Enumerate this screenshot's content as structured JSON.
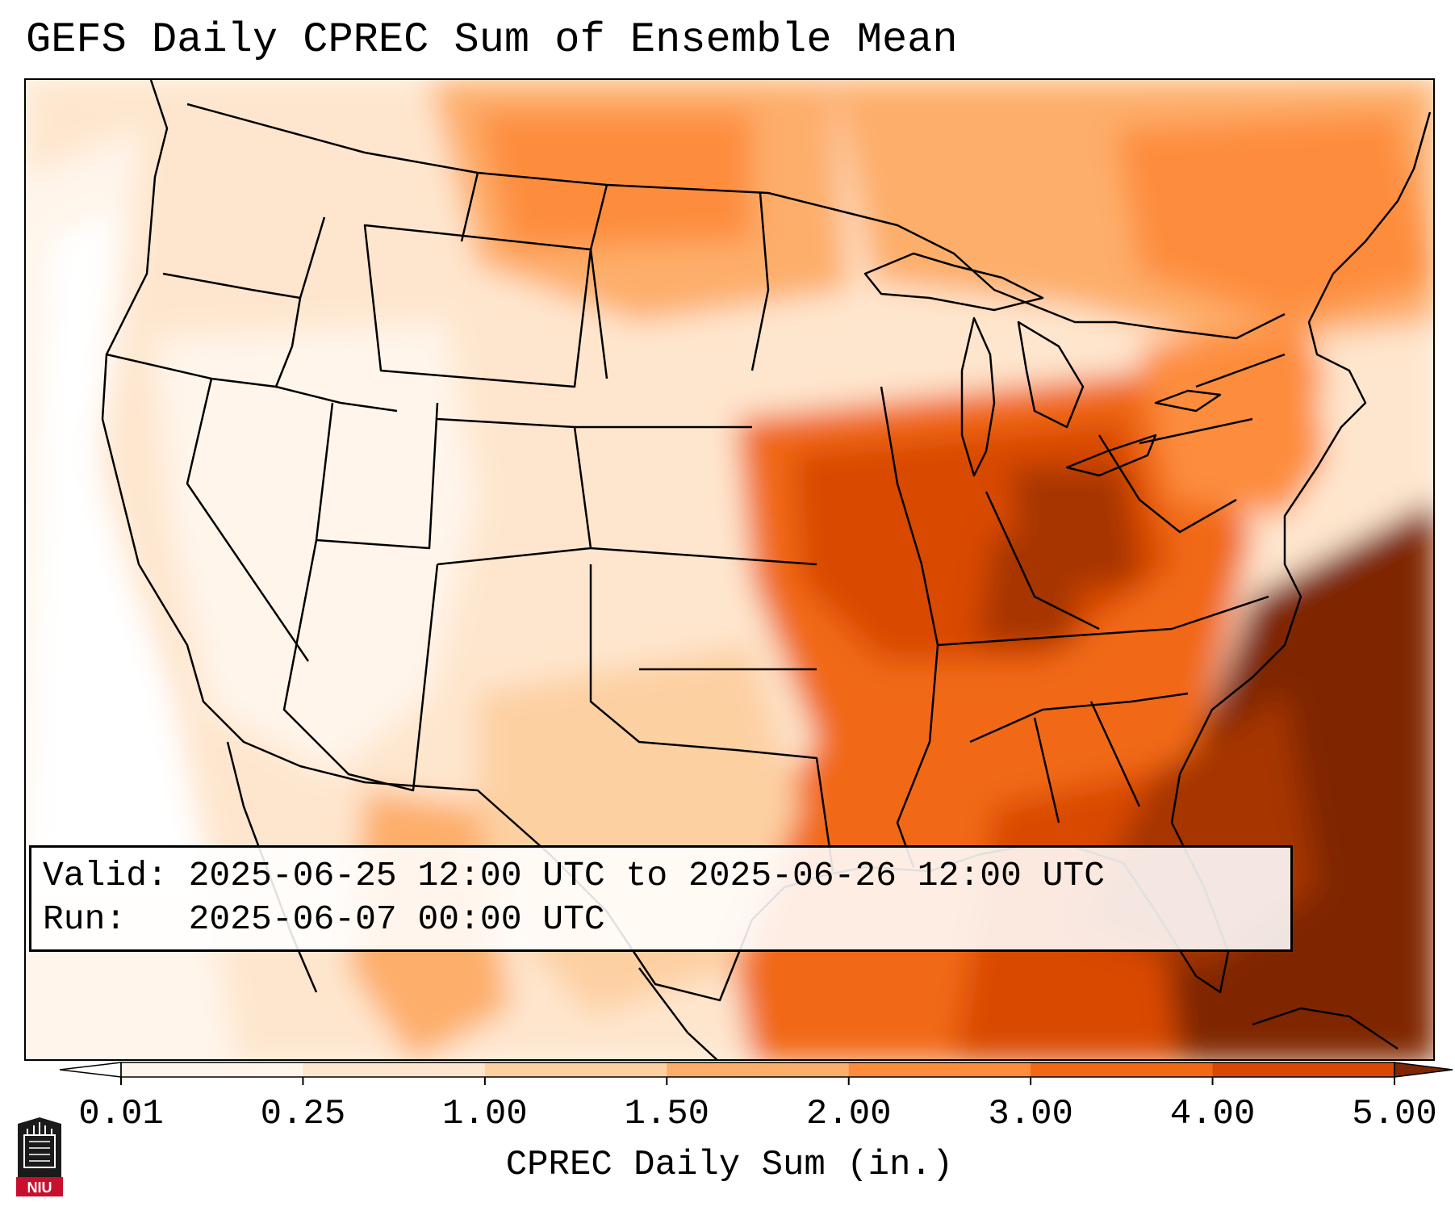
{
  "title": "GEFS Daily CPREC Sum of Ensemble Mean",
  "info": {
    "valid_line": "Valid: 2025-06-25 12:00 UTC to 2025-06-26 12:00 UTC",
    "run_line": "Run:   2025-06-07 00:00 UTC"
  },
  "colorbar": {
    "label": "CPREC Daily Sum (in.)",
    "ticks": [
      "0.01",
      "0.25",
      "1.00",
      "1.50",
      "2.00",
      "3.00",
      "4.00",
      "5.00"
    ],
    "colors": [
      "#fff5eb",
      "#fee6ce",
      "#fdd0a2",
      "#fdae6b",
      "#fd8d3c",
      "#f16913",
      "#d94801",
      "#a63603",
      "#7f2704"
    ],
    "under_color": "#ffffff",
    "over_color": "#7f2704"
  },
  "logo": {
    "text": "NIU"
  },
  "map": {
    "region": "Contiguous United States",
    "palette": {
      "none": "#ffffff",
      "trace": "#fff5eb",
      "light": "#fee6ce",
      "low": "#fdd0a2",
      "moderate": "#fdae6b",
      "medium": "#fd8d3c",
      "high": "#f16913",
      "heavy": "#d94801",
      "very_heavy": "#a63603",
      "extreme": "#7f2704"
    }
  }
}
